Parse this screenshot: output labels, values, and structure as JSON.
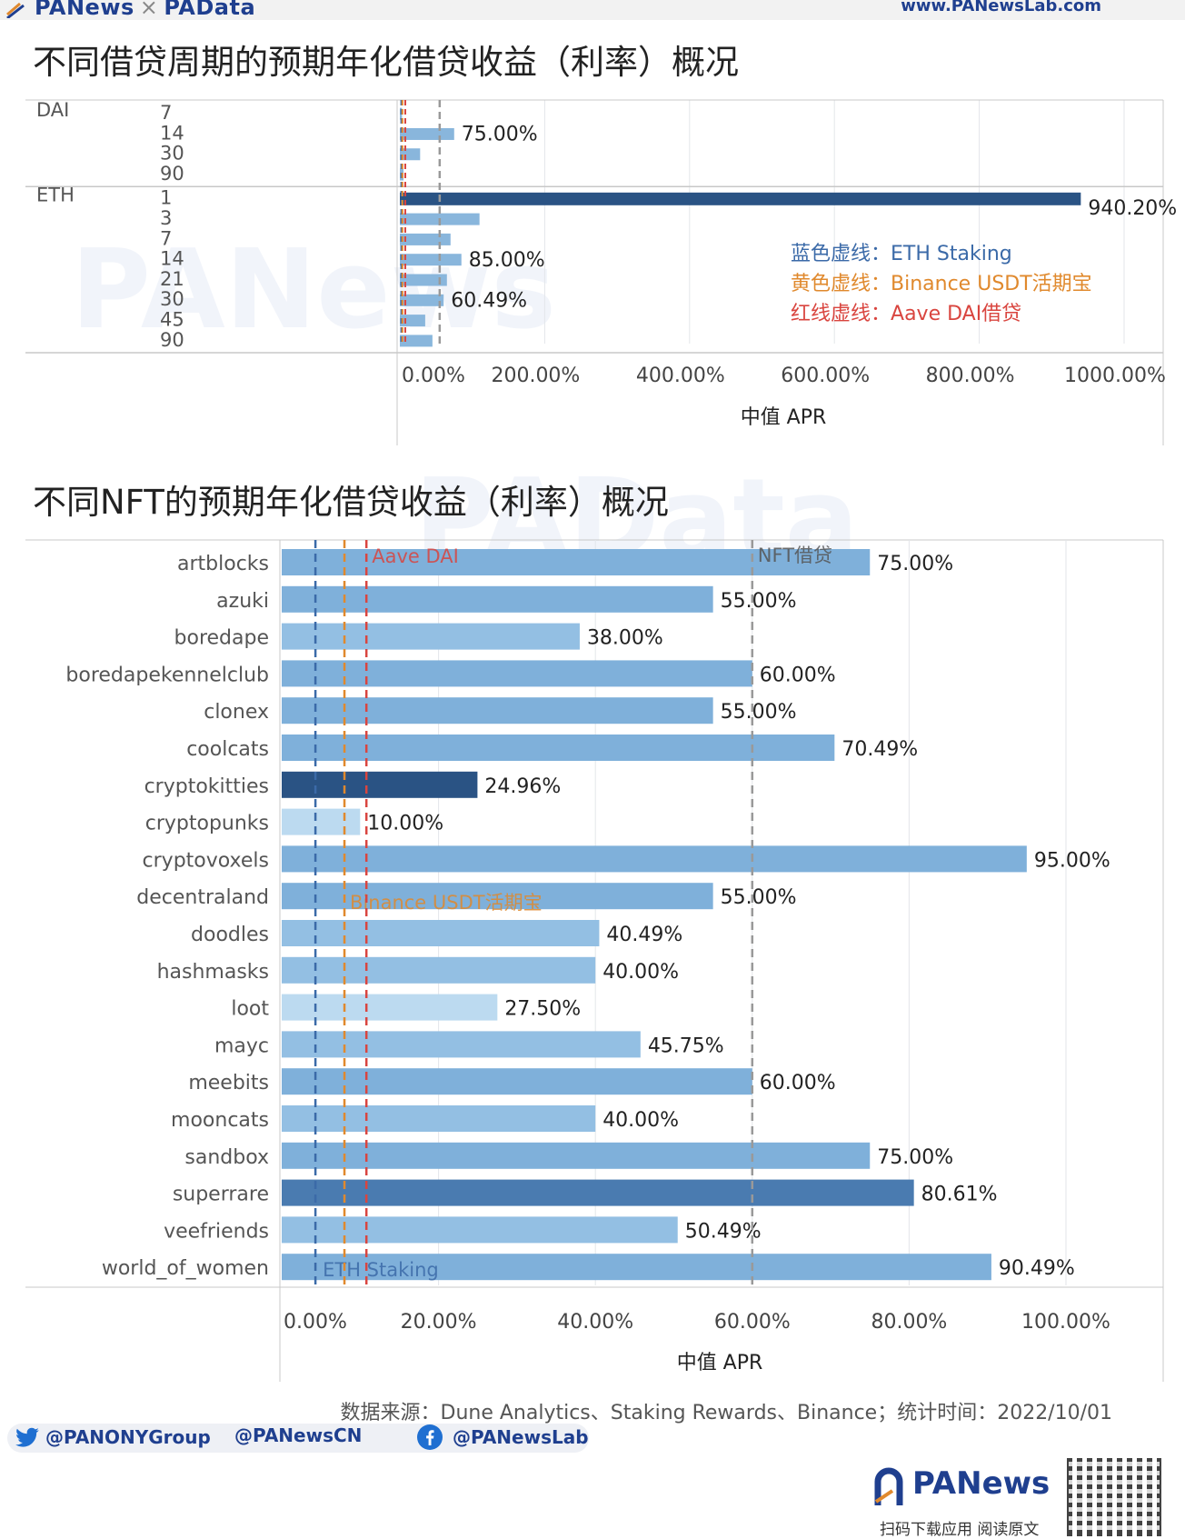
{
  "header": {
    "brand_left_a": "PANews",
    "brand_sep": "×",
    "brand_left_b": "PAData",
    "brand_right": "www.PANewsLab.com"
  },
  "watermarks": {
    "a": "PANews",
    "b": "PAData"
  },
  "chart_data": [
    {
      "type": "bar",
      "orientation": "horizontal",
      "title": "不同借贷周期的预期年化借贷收益（利率）概况",
      "xlabel": "中值 APR",
      "x_ticks": [
        "0.00%",
        "200.00%",
        "400.00%",
        "600.00%",
        "800.00%",
        "1000.00%"
      ],
      "xlim": [
        0,
        1100
      ],
      "groups": [
        {
          "name": "DAI",
          "categories": [
            "7",
            "14",
            "30",
            "90"
          ],
          "values": [
            3,
            75,
            28,
            5
          ],
          "value_labels": [
            "",
            "75.00%",
            "",
            ""
          ]
        },
        {
          "name": "ETH",
          "categories": [
            "1",
            "3",
            "7",
            "14",
            "21",
            "30",
            "45",
            "90"
          ],
          "values": [
            940.2,
            110,
            70,
            85,
            65,
            60.49,
            35,
            45
          ],
          "value_labels": [
            "940.20%",
            "",
            "",
            "85.00%",
            "",
            "60.49%",
            "",
            ""
          ]
        }
      ],
      "reference_lines": [
        {
          "name": "ETH Staking",
          "value": 4.5,
          "color": "#3b6aa8"
        },
        {
          "name": "Binance USDT活期宝",
          "value": 6,
          "color": "#e0892d"
        },
        {
          "name": "Aave DAI借贷",
          "value": 10,
          "color": "#d9453f"
        }
      ],
      "extra_dashed_line": 55,
      "legend": [
        {
          "prefix": "蓝色虚线：",
          "text": "ETH Staking",
          "color": "#3b6aa8"
        },
        {
          "prefix": "黄色虚线：",
          "text": "Binance USDT活期宝",
          "color": "#e0892d"
        },
        {
          "prefix": "红线虚线：",
          "text": "Aave DAI借贷",
          "color": "#d9453f"
        }
      ]
    },
    {
      "type": "bar",
      "orientation": "horizontal",
      "title": "不同NFT的预期年化借贷收益（利率）概况",
      "xlabel": "中值 APR",
      "x_ticks": [
        "0.00%",
        "20.00%",
        "40.00%",
        "60.00%",
        "80.00%",
        "100.00%"
      ],
      "xlim": [
        0,
        107
      ],
      "categories": [
        "artblocks",
        "azuki",
        "boredape",
        "boredapekennelclub",
        "clonex",
        "coolcats",
        "cryptokitties",
        "cryptopunks",
        "cryptovoxels",
        "decentraland",
        "doodles",
        "hashmasks",
        "loot",
        "mayc",
        "meebits",
        "mooncats",
        "sandbox",
        "superrare",
        "veefriends",
        "world_of_women"
      ],
      "values": [
        75.0,
        55.0,
        38.0,
        60.0,
        55.0,
        70.49,
        24.96,
        10.0,
        95.0,
        55.0,
        40.49,
        40.0,
        27.5,
        45.75,
        60.0,
        40.0,
        75.0,
        80.61,
        50.49,
        90.49
      ],
      "value_labels": [
        "75.00%",
        "55.00%",
        "38.00%",
        "60.00%",
        "55.00%",
        "70.49%",
        "24.96%",
        "10.00%",
        "95.00%",
        "55.00%",
        "40.49%",
        "40.00%",
        "27.50%",
        "45.75%",
        "60.00%",
        "40.00%",
        "75.00%",
        "80.61%",
        "50.49%",
        "90.49%"
      ],
      "reference_lines": [
        {
          "name": "ETH Staking",
          "value": 4.3,
          "color": "#3b6aa8"
        },
        {
          "name": "Binance USDT活期宝",
          "value": 8,
          "color": "#e0892d"
        },
        {
          "name": "Aave DAI",
          "value": 10.8,
          "color": "#d9453f"
        },
        {
          "name": "NFT借贷",
          "value": 60.0,
          "color": "#999999"
        }
      ]
    }
  ],
  "footer": {
    "source": "数据来源：Dune Analytics、Staking Rewards、Binance；统计时间：2022/10/01",
    "twitter": "@PANONYGroup",
    "weibo": "@PANewsCN",
    "facebook": "@PANewsLab",
    "logo": "PANews",
    "caption": "扫码下载应用 阅读原文"
  },
  "colors": {
    "bar_dark": "#2a5384",
    "bar_mid": "#4a7bb0",
    "bar_light": "#89b6dc",
    "bar_pale": "#bcdaf0",
    "grid": "#e3e6ea",
    "divider": "#c8c8c8"
  }
}
